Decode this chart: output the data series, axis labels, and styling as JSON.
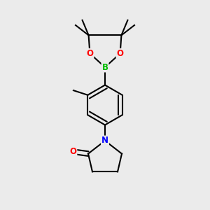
{
  "background_color": "#ebebeb",
  "bond_color": "#000000",
  "atom_colors": {
    "B": "#00bb00",
    "O": "#ff0000",
    "N": "#0000ff",
    "C": "#000000"
  },
  "figsize": [
    3.0,
    3.0
  ],
  "dpi": 100
}
